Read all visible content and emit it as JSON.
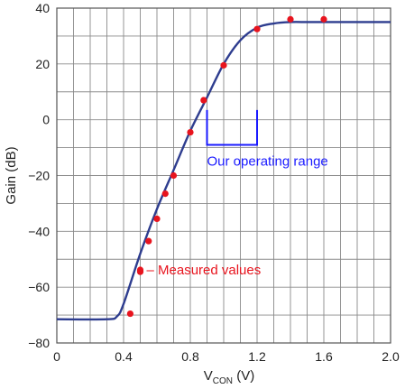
{
  "chart_data": {
    "type": "line",
    "xlabel": "V",
    "xlabel_subscript": "CON",
    "xlabel_unit": " (V)",
    "ylabel": "Gain (dB)",
    "xlim": [
      0,
      2.0
    ],
    "ylim": [
      -80,
      40
    ],
    "x_ticks": [
      "0",
      "0.4",
      "0.8",
      "1.2",
      "1.6",
      "2.0"
    ],
    "y_ticks": [
      "40",
      "20",
      "0",
      "−20",
      "−40",
      "−60",
      "−80"
    ],
    "grid": true,
    "series": [
      {
        "style": "line",
        "color": "#2e3d8f",
        "x": [
          0,
          0.3,
          0.36,
          0.4,
          0.5,
          0.6,
          0.7,
          0.8,
          0.9,
          1.0,
          1.1,
          1.2,
          1.3,
          1.4,
          1.5,
          1.6,
          1.8,
          2.0
        ],
        "y": [
          -71.5,
          -71.5,
          -70.5,
          -66,
          -48,
          -32,
          -18,
          -4,
          8,
          20,
          28.5,
          33,
          34.5,
          35,
          35,
          35,
          35,
          35
        ]
      },
      {
        "name": "Measured values",
        "style": "points",
        "color": "#e8141e",
        "x": [
          0.44,
          0.5,
          0.55,
          0.6,
          0.65,
          0.7,
          0.8,
          0.88,
          1.0,
          1.2,
          1.4,
          1.6
        ],
        "y": [
          -69.5,
          -54.5,
          -43.5,
          -35.5,
          -26.5,
          -20,
          -4.5,
          7,
          19.5,
          32.5,
          36,
          36
        ]
      }
    ],
    "annotations": {
      "measured_label": "– Measured values",
      "operating_range_label": "Our operating range",
      "operating_range": {
        "x_start": 0.9,
        "x_end": 1.2,
        "y_top": 3.5,
        "y_bottom": -9
      },
      "annotation_colors": {
        "measured": "#e8141e",
        "operating_range": "#1a1aff"
      }
    }
  }
}
